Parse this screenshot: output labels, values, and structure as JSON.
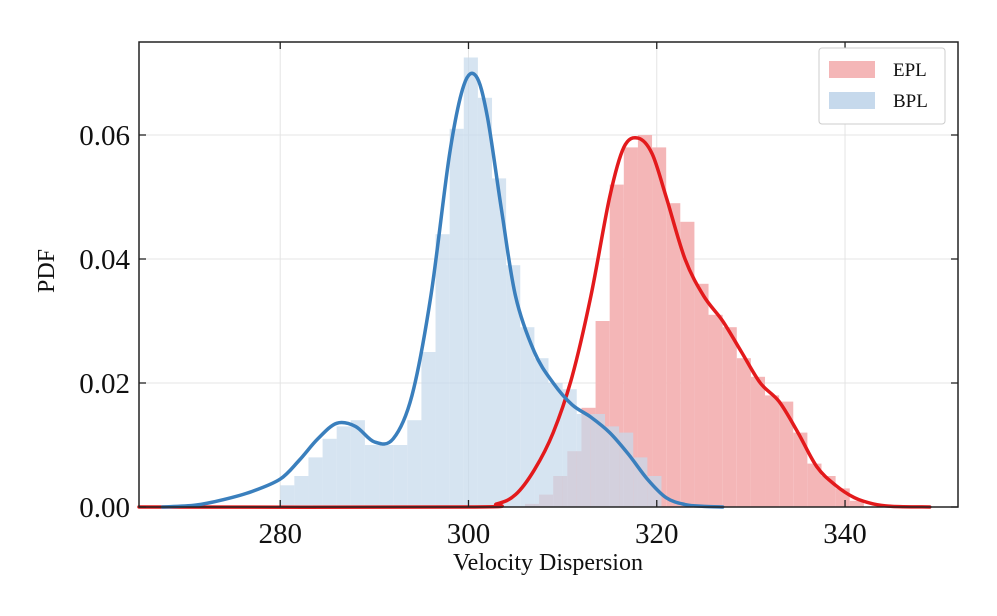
{
  "chart_data": {
    "type": "histogram",
    "title": "",
    "xlabel": "Velocity Dispersion",
    "ylabel": "PDF",
    "xlim": [
      265,
      352
    ],
    "ylim": [
      0,
      0.075
    ],
    "xticks": [
      280,
      300,
      320,
      340
    ],
    "yticks": [
      0.0,
      0.02,
      0.04,
      0.06
    ],
    "xtick_labels": [
      "280",
      "300",
      "320",
      "340"
    ],
    "ytick_labels": [
      "0.00",
      "0.02",
      "0.04",
      "0.06"
    ],
    "grid": true,
    "legend_position": "top-right",
    "series": [
      {
        "name": "EPL",
        "bar_color": "#f4b6b7",
        "line_color": "#e31a1c",
        "bins": [
          [
            306,
            307.5,
            0.0005
          ],
          [
            307.5,
            309,
            0.002
          ],
          [
            309,
            310.5,
            0.005
          ],
          [
            310.5,
            312,
            0.009
          ],
          [
            312,
            313.5,
            0.016
          ],
          [
            313.5,
            315,
            0.03
          ],
          [
            315,
            316.5,
            0.052
          ],
          [
            316.5,
            318,
            0.058
          ],
          [
            318,
            319.5,
            0.06
          ],
          [
            319.5,
            321,
            0.058
          ],
          [
            321,
            322.5,
            0.049
          ],
          [
            322.5,
            324,
            0.046
          ],
          [
            324,
            325.5,
            0.036
          ],
          [
            325.5,
            327,
            0.031
          ],
          [
            327,
            328.5,
            0.029
          ],
          [
            328.5,
            330,
            0.024
          ],
          [
            330,
            331.5,
            0.021
          ],
          [
            331.5,
            333,
            0.018
          ],
          [
            333,
            334.5,
            0.017
          ],
          [
            334.5,
            336,
            0.012
          ],
          [
            336,
            337.5,
            0.007
          ],
          [
            337.5,
            339,
            0.005
          ],
          [
            339,
            340.5,
            0.003
          ],
          [
            340.5,
            342,
            0.001
          ]
        ],
        "kde": {
          "x": [
            265,
            300,
            303,
            305,
            307,
            309,
            311,
            313,
            315,
            316.5,
            318,
            319.5,
            321,
            323,
            325,
            327,
            329,
            331,
            333,
            335,
            337,
            339,
            341,
            343,
            345,
            349
          ],
          "y": [
            0,
            0,
            0.0005,
            0.002,
            0.006,
            0.012,
            0.021,
            0.034,
            0.05,
            0.058,
            0.0595,
            0.057,
            0.05,
            0.04,
            0.034,
            0.03,
            0.025,
            0.02,
            0.017,
            0.012,
            0.0065,
            0.0035,
            0.0015,
            0.0005,
            0.0001,
            0
          ]
        }
      },
      {
        "name": "BPL",
        "bar_color": "#c6d9ec",
        "line_color": "#3a7fbd",
        "bins": [
          [
            280,
            281.5,
            0.0035
          ],
          [
            281.5,
            283,
            0.005
          ],
          [
            283,
            284.5,
            0.008
          ],
          [
            284.5,
            286,
            0.011
          ],
          [
            286,
            287.5,
            0.013
          ],
          [
            287.5,
            289,
            0.014
          ],
          [
            289,
            290.5,
            0.01
          ],
          [
            290.5,
            292,
            0.01
          ],
          [
            292,
            293.5,
            0.01
          ],
          [
            293.5,
            295,
            0.014
          ],
          [
            295,
            296.5,
            0.025
          ],
          [
            296.5,
            298,
            0.044
          ],
          [
            298,
            299.5,
            0.061
          ],
          [
            299.5,
            301,
            0.0725
          ],
          [
            301,
            302.5,
            0.066
          ],
          [
            302.5,
            304,
            0.053
          ],
          [
            304,
            305.5,
            0.039
          ],
          [
            305.5,
            307,
            0.029
          ],
          [
            307,
            308.5,
            0.024
          ],
          [
            308.5,
            310,
            0.02
          ],
          [
            310,
            311.5,
            0.019
          ],
          [
            311.5,
            313,
            0.015
          ],
          [
            313,
            314.5,
            0.015
          ],
          [
            314.5,
            316,
            0.013
          ],
          [
            316,
            317.5,
            0.012
          ],
          [
            317.5,
            319,
            0.008
          ],
          [
            319,
            320.5,
            0.005
          ]
        ],
        "kde": {
          "x": [
            267.5,
            271,
            274,
            277,
            280,
            282,
            284,
            286,
            288,
            290,
            292,
            294,
            296,
            298,
            299.5,
            300.8,
            302,
            303.5,
            305,
            307,
            309,
            311,
            313,
            315,
            317,
            319,
            321,
            323,
            325,
            327
          ],
          "y": [
            0,
            0.0003,
            0.0012,
            0.0025,
            0.0045,
            0.0075,
            0.011,
            0.0135,
            0.013,
            0.0105,
            0.011,
            0.018,
            0.034,
            0.057,
            0.068,
            0.0695,
            0.063,
            0.048,
            0.034,
            0.025,
            0.02,
            0.0165,
            0.0145,
            0.012,
            0.0085,
            0.0045,
            0.0015,
            0.0004,
            0.0001,
            0
          ]
        }
      }
    ]
  }
}
